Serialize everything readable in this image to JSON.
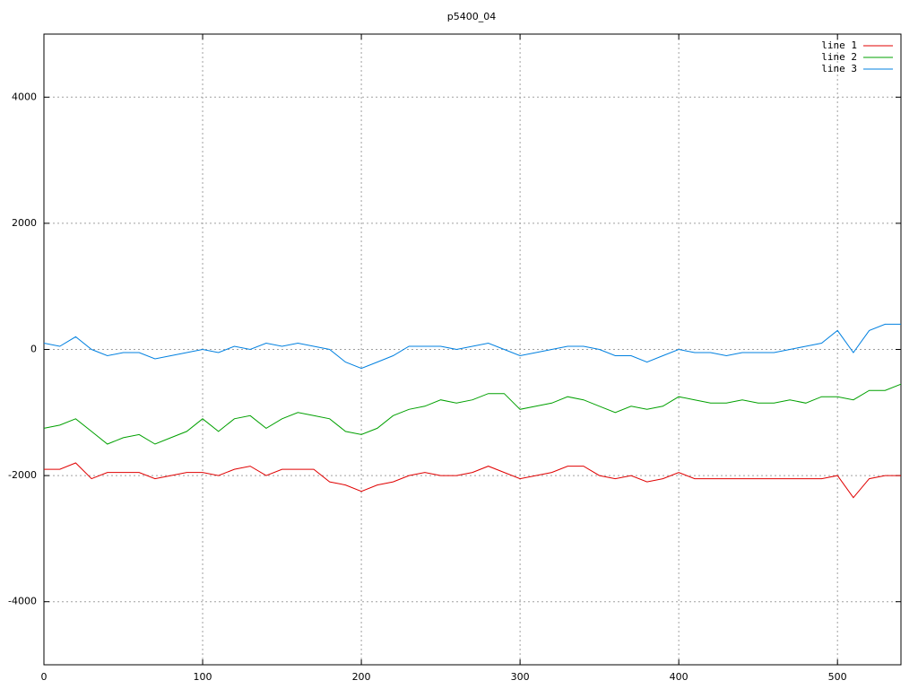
{
  "chart_data": {
    "type": "line",
    "title": "p5400_04",
    "x": [
      0,
      10,
      20,
      30,
      40,
      50,
      60,
      70,
      80,
      90,
      100,
      110,
      120,
      130,
      140,
      150,
      160,
      170,
      180,
      190,
      200,
      210,
      220,
      230,
      240,
      250,
      260,
      270,
      280,
      290,
      300,
      310,
      320,
      330,
      340,
      350,
      360,
      370,
      380,
      390,
      400,
      410,
      420,
      430,
      440,
      450,
      460,
      470,
      480,
      490,
      500,
      510,
      520,
      530,
      540
    ],
    "series": [
      {
        "name": "line 1",
        "color": "#e00000",
        "values": [
          -1900,
          -1900,
          -1800,
          -2050,
          -1950,
          -1950,
          -1950,
          -2050,
          -2000,
          -1950,
          -1950,
          -2000,
          -1900,
          -1850,
          -2000,
          -1900,
          -1900,
          -1900,
          -2100,
          -2150,
          -2250,
          -2150,
          -2100,
          -2000,
          -1950,
          -2000,
          -2000,
          -1950,
          -1850,
          -1950,
          -2050,
          -2000,
          -1950,
          -1850,
          -1850,
          -2000,
          -2050,
          -2000,
          -2100,
          -2050,
          -1950,
          -2050,
          -2050,
          -2050,
          -2050,
          -2050,
          -2050,
          -2050,
          -2050,
          -2050,
          -2000,
          -2350,
          -2050,
          -2000,
          -2000
        ]
      },
      {
        "name": "line 2",
        "color": "#00a000",
        "values": [
          -1250,
          -1200,
          -1100,
          -1300,
          -1500,
          -1400,
          -1350,
          -1500,
          -1400,
          -1300,
          -1100,
          -1300,
          -1100,
          -1050,
          -1250,
          -1100,
          -1000,
          -1050,
          -1100,
          -1300,
          -1350,
          -1250,
          -1050,
          -950,
          -900,
          -800,
          -850,
          -800,
          -700,
          -700,
          -950,
          -900,
          -850,
          -750,
          -800,
          -900,
          -1000,
          -900,
          -950,
          -900,
          -750,
          -800,
          -850,
          -850,
          -800,
          -850,
          -850,
          -800,
          -850,
          -750,
          -750,
          -800,
          -650,
          -650,
          -550
        ]
      },
      {
        "name": "line 3",
        "color": "#0080e0",
        "values": [
          100,
          50,
          200,
          0,
          -100,
          -50,
          -50,
          -150,
          -100,
          -50,
          0,
          -50,
          50,
          0,
          100,
          50,
          100,
          50,
          0,
          -200,
          -300,
          -200,
          -100,
          50,
          50,
          50,
          0,
          50,
          100,
          0,
          -100,
          -50,
          0,
          50,
          50,
          0,
          -100,
          -100,
          -200,
          -100,
          0,
          -50,
          -50,
          -100,
          -50,
          -50,
          -50,
          0,
          50,
          100,
          300,
          -50,
          300,
          400,
          400
        ]
      }
    ],
    "xlim": [
      0,
      540
    ],
    "ylim": [
      -5000,
      5000
    ],
    "xticks": [
      0,
      100,
      200,
      300,
      400,
      500
    ],
    "yticks": [
      -4000,
      -2000,
      0,
      2000,
      4000
    ],
    "grid": true,
    "legend": "top-right"
  }
}
